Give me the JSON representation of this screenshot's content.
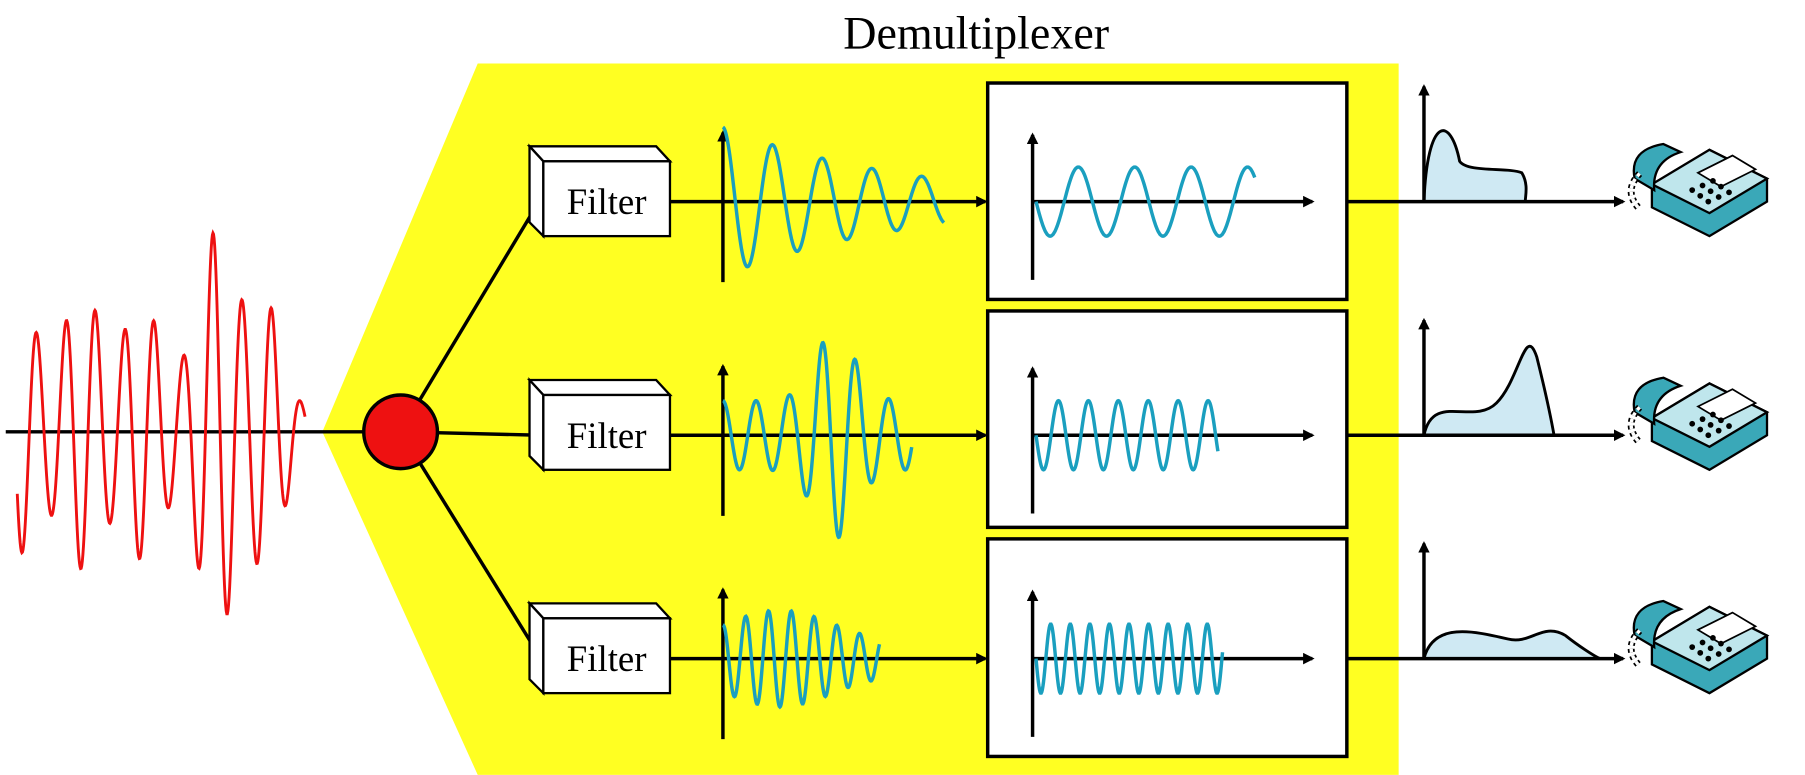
{
  "title": "Demultiplexer",
  "filters": [
    {
      "label": "Filter"
    },
    {
      "label": "Filter"
    },
    {
      "label": "Filter"
    }
  ]
}
